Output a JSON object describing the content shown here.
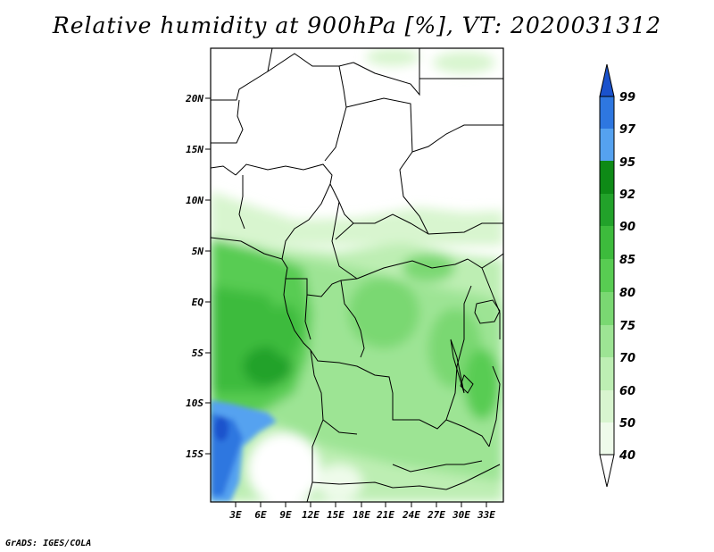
{
  "title": "Relative humidity at 900hPa [%], VT: 2020031312",
  "credit": "GrADS: IGES/COLA",
  "lat_labels": [
    "20N",
    "15N",
    "10N",
    "5N",
    "EQ",
    "5S",
    "10S",
    "15S"
  ],
  "lon_labels": [
    "3E",
    "6E",
    "9E",
    "12E",
    "15E",
    "18E",
    "21E",
    "24E",
    "27E",
    "30E",
    "33E"
  ],
  "colorbar": {
    "levels": [
      "99",
      "97",
      "95",
      "92",
      "90",
      "85",
      "80",
      "75",
      "70",
      "60",
      "50",
      "40"
    ],
    "colors": [
      "#1a52cc",
      "#2e77e0",
      "#55a2f0",
      "#0e8a16",
      "#22a22a",
      "#3dbb3c",
      "#58cc52",
      "#7ad872",
      "#9de494",
      "#bdeeb3",
      "#d8f5cf",
      "#eefbea"
    ]
  }
}
